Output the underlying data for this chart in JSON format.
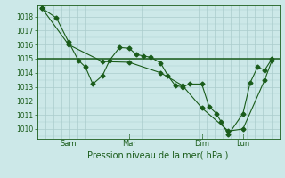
{
  "xlabel": "Pression niveau de la mer( hPa )",
  "ylim": [
    1009.3,
    1018.8
  ],
  "yticks": [
    1010,
    1011,
    1012,
    1013,
    1014,
    1015,
    1016,
    1017,
    1018
  ],
  "bg_color": "#cce8e8",
  "grid_color": "#aacccc",
  "line_color": "#1a5c1a",
  "xtick_labels": [
    "Sam",
    "Mar",
    "Dim",
    "Lun"
  ],
  "xtick_positions": [
    0.13,
    0.38,
    0.68,
    0.85
  ],
  "series1_x": [
    0.02,
    0.08,
    0.13,
    0.17,
    0.2,
    0.23,
    0.27,
    0.3,
    0.34,
    0.38,
    0.41,
    0.44,
    0.47,
    0.51,
    0.54,
    0.57,
    0.6,
    0.63,
    0.68,
    0.71,
    0.74,
    0.76,
    0.79,
    0.85,
    0.88,
    0.91,
    0.94,
    0.97
  ],
  "series1_y": [
    1018.6,
    1017.9,
    1016.2,
    1014.9,
    1014.4,
    1013.2,
    1013.8,
    1014.9,
    1015.8,
    1015.75,
    1015.3,
    1015.2,
    1015.1,
    1014.7,
    1013.8,
    1013.1,
    1013.0,
    1013.2,
    1013.2,
    1011.6,
    1011.1,
    1010.5,
    1009.6,
    1011.1,
    1013.3,
    1014.4,
    1014.2,
    1015.0
  ],
  "series2_x": [
    0.02,
    0.13,
    0.27,
    0.38,
    0.51,
    0.6,
    0.68,
    0.79,
    0.85,
    0.94,
    0.97
  ],
  "series2_y": [
    1018.6,
    1016.0,
    1014.8,
    1014.75,
    1014.0,
    1013.1,
    1011.5,
    1009.85,
    1010.0,
    1013.5,
    1014.9
  ],
  "hline_y": 1015.0,
  "marker_size": 2.5,
  "lw": 0.8
}
